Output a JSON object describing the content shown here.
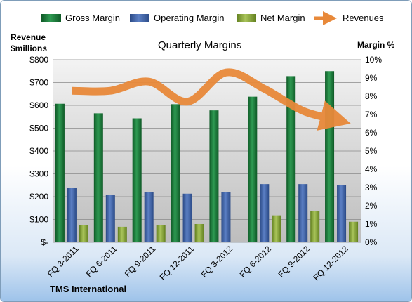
{
  "chart_data": {
    "type": "bar",
    "title": "Quarterly Margins",
    "categories": [
      "FQ 3-2011",
      "FQ 6-2011",
      "FQ 9-2011",
      "FQ 12-2011",
      "FQ 3-2012",
      "FQ 6-2012",
      "FQ 9-2012",
      "FQ 12-2012"
    ],
    "series": [
      {
        "name": "Gross Margin",
        "values": [
          607,
          565,
          543,
          605,
          578,
          638,
          728,
          750
        ],
        "color": "#1e7a3c",
        "axis": "left"
      },
      {
        "name": "Operating Margin",
        "values": [
          240,
          208,
          220,
          213,
          220,
          255,
          255,
          250
        ],
        "color": "#3f63a8",
        "axis": "left"
      },
      {
        "name": "Net Margin",
        "values": [
          75,
          68,
          75,
          80,
          0,
          118,
          137,
          90
        ],
        "color": "#8fae3e",
        "axis": "left"
      },
      {
        "name": "Revenues",
        "values": [
          8.3,
          8.3,
          8.8,
          7.7,
          9.3,
          8.4,
          7.2,
          6.7
        ],
        "color": "#e8893a",
        "axis": "right",
        "type": "line"
      }
    ],
    "y_left": {
      "label_line1": "Revenue",
      "label_line2": "$millions",
      "ylim": [
        0,
        800
      ],
      "ticks": [
        "$-",
        "$100",
        "$200",
        "$300",
        "$400",
        "$500",
        "$600",
        "$700",
        "$800"
      ]
    },
    "y_right": {
      "label": "Margin %",
      "ylim": [
        0,
        10
      ],
      "ticks": [
        "0%",
        "1%",
        "2%",
        "3%",
        "4%",
        "5%",
        "6%",
        "7%",
        "8%",
        "9%",
        "10%"
      ]
    },
    "grid": true,
    "legend_position": "top",
    "source_label": "TMS International"
  }
}
